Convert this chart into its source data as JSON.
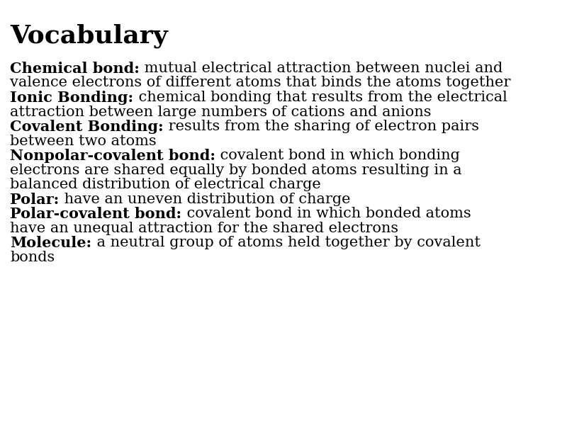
{
  "title": "Vocabulary",
  "background_color": "#ffffff",
  "title_fontsize": 26,
  "title_fontweight": "bold",
  "text_fontsize": 15.0,
  "font_family": "DejaVu Serif",
  "text_color": "#000000",
  "entries": [
    {
      "bold_part": "Chemical bond:",
      "normal_part": " mutual electrical attraction between nuclei and\nvalence electrons of different atoms that binds the atoms together"
    },
    {
      "bold_part": "Ionic Bonding:",
      "normal_part": " chemical bonding that results from the electrical\nattraction between large numbers of cations and anions"
    },
    {
      "bold_part": "Covalent Bonding:",
      "normal_part": " results from the sharing of electron pairs\nbetween two atoms"
    },
    {
      "bold_part": "Nonpolar-covalent bond:",
      "normal_part": " covalent bond in which bonding\nelectrons are shared equally by bonded atoms resulting in a\nbalanced distribution of electrical charge"
    },
    {
      "bold_part": "Polar:",
      "normal_part": " have an uneven distribution of charge"
    },
    {
      "bold_part": "Polar-covalent bond:",
      "normal_part": " covalent bond in which bonded atoms\nhave an unequal attraction for the shared electrons"
    },
    {
      "bold_part": "Molecule:",
      "normal_part": " a neutral group of atoms held together by covalent\nbonds"
    }
  ]
}
